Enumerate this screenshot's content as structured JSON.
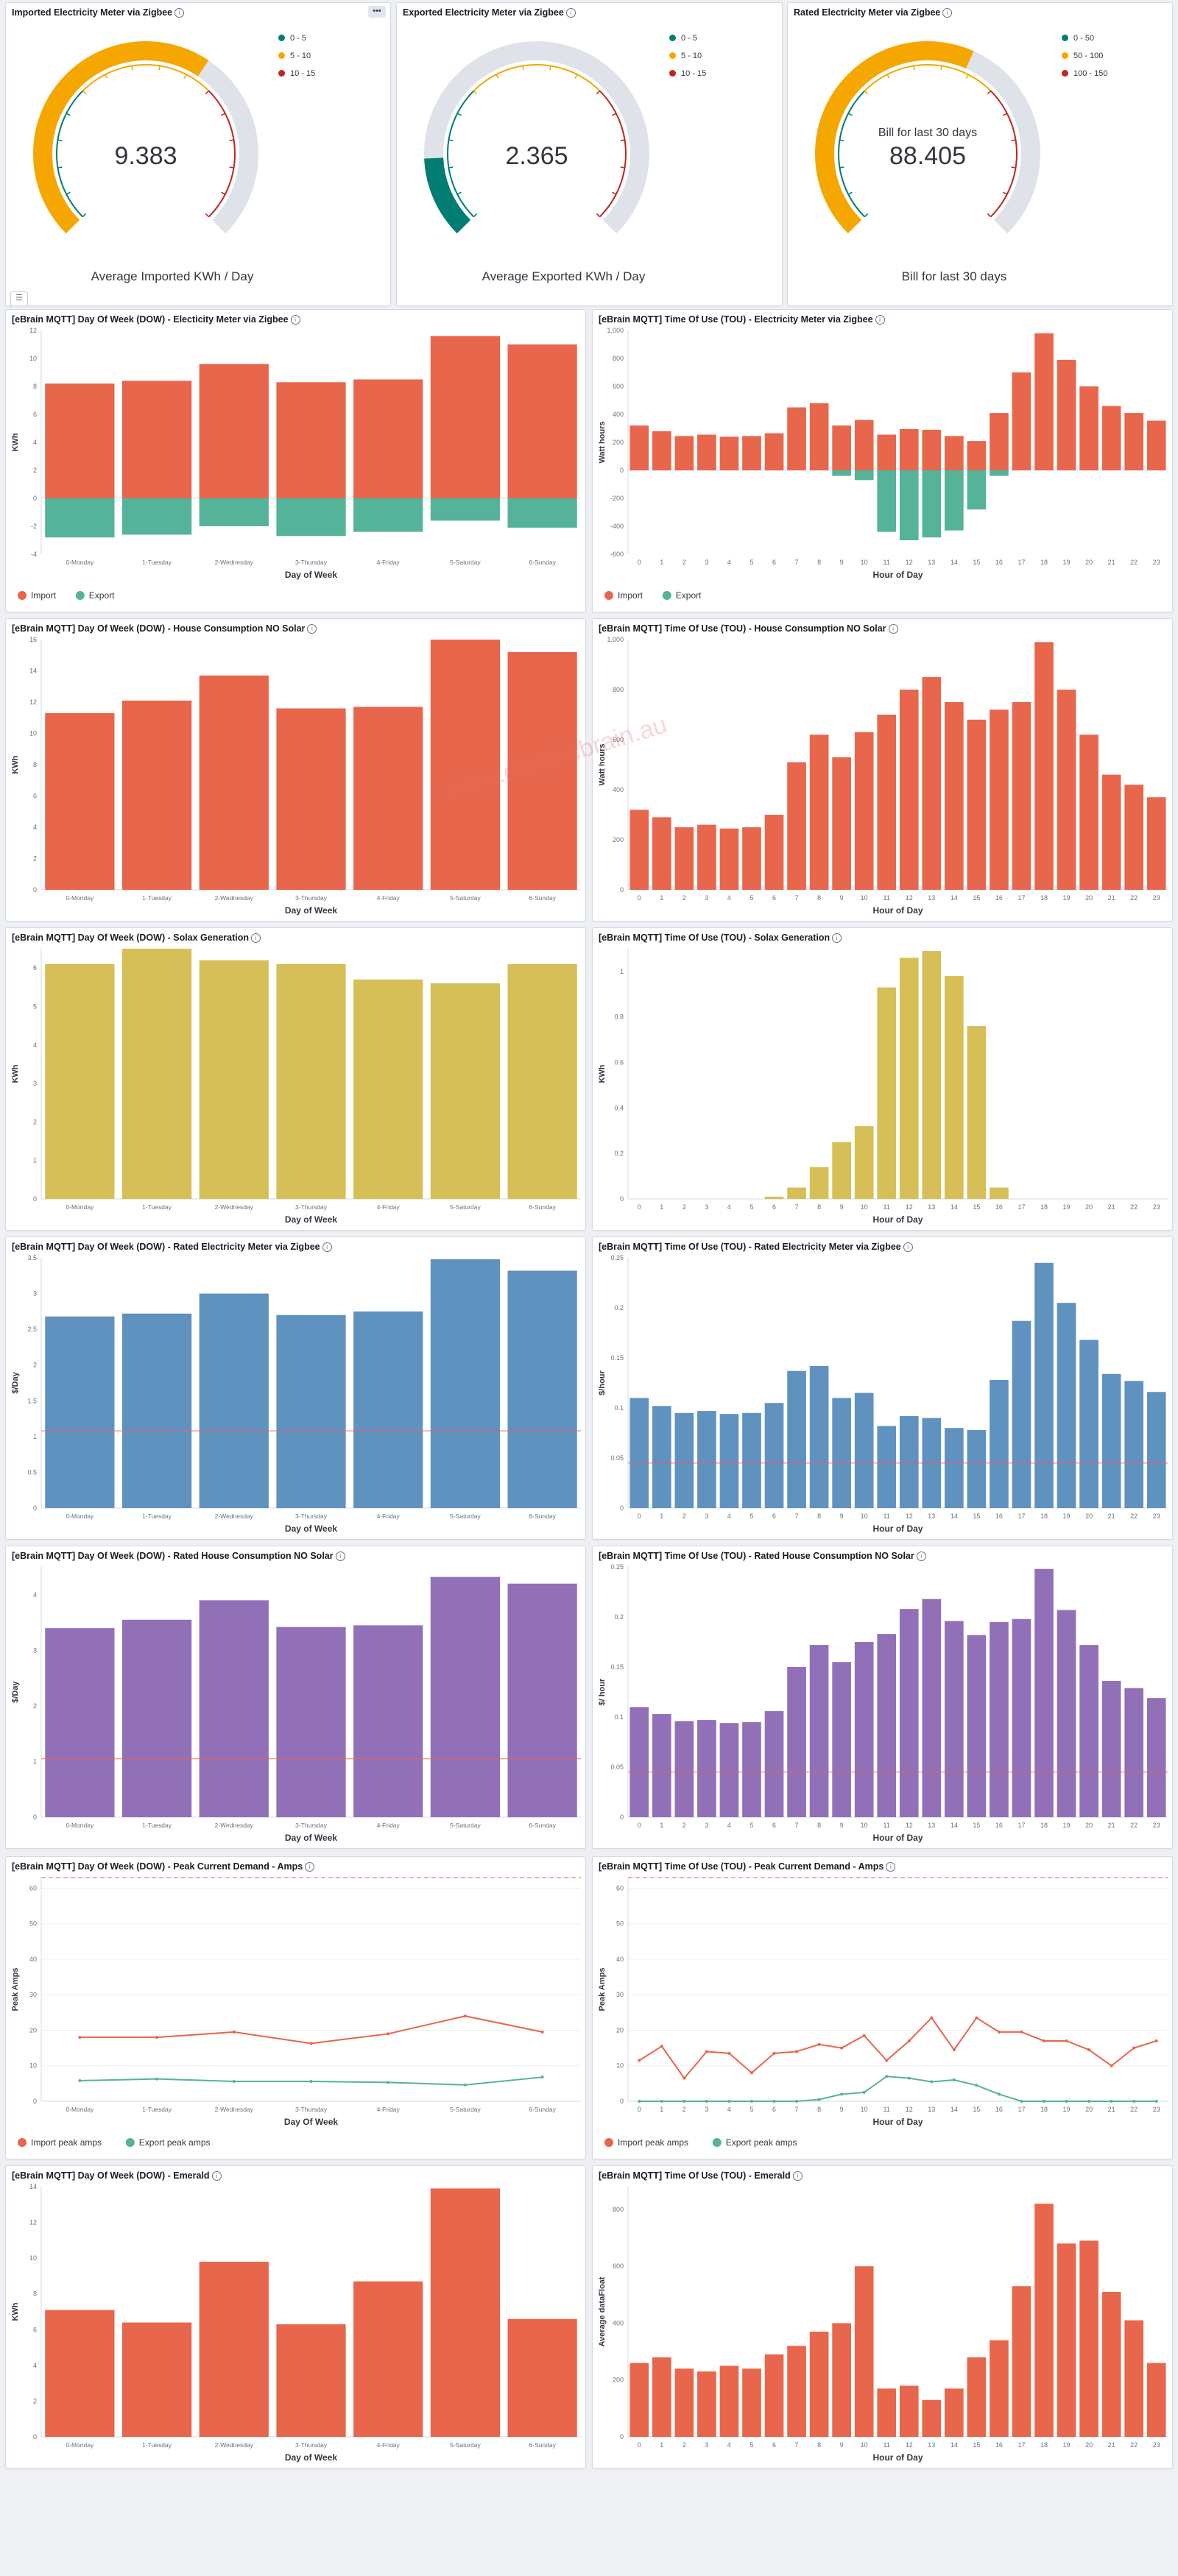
{
  "colors": {
    "import": "#e7664c",
    "export": "#54b399",
    "solar": "#d6bf57",
    "rated": "#6092c0",
    "house_rated": "#9170b8",
    "gauge_green": "#017d73",
    "gauge_orange": "#f5a700",
    "gauge_red": "#bd271e",
    "gauge_track": "#dfe2e8",
    "threshold": "#e7664c"
  },
  "toolbar": {
    "panel_menu_label": "•••",
    "toggle_label": "☰"
  },
  "watermark": {
    "text": "www.electricbrain.au"
  },
  "gauges": [
    {
      "title": "Imported Electricity Meter via Zigbee",
      "value": 9.383,
      "display_value": "9.383",
      "max": 15,
      "caption": "Average Imported KWh / Day",
      "inner_label": "",
      "bands": [
        {
          "label": "0 - 5",
          "color": "#017d73"
        },
        {
          "label": "5 - 10",
          "color": "#f5a700"
        },
        {
          "label": "10 - 15",
          "color": "#bd271e"
        }
      ]
    },
    {
      "title": "Exported Electricity Meter via Zigbee",
      "value": 2.365,
      "display_value": "2.365",
      "max": 15,
      "caption": "Average Exported KWh / Day",
      "inner_label": "",
      "bands": [
        {
          "label": "0 - 5",
          "color": "#017d73"
        },
        {
          "label": "5 - 10",
          "color": "#f5a700"
        },
        {
          "label": "10 - 15",
          "color": "#bd271e"
        }
      ]
    },
    {
      "title": "Rated Electricity Meter via Zigbee",
      "value": 88.405,
      "display_value": "88.405",
      "max": 150,
      "caption": "Bill for last 30 days",
      "inner_label": "Bill for last 30 days",
      "bands": [
        {
          "label": "0 - 50",
          "color": "#017d73"
        },
        {
          "label": "50 - 100",
          "color": "#f5a700"
        },
        {
          "label": "100 - 150",
          "color": "#bd271e"
        }
      ]
    }
  ],
  "chart_data": [
    {
      "title": "[eBrain MQTT] Day Of Week (DOW) - Electicity Meter via Zigbee",
      "type": "bar",
      "categories": [
        "0-Monday",
        "1-Tuesday",
        "2-Wednesday",
        "3-Thursday",
        "4-Friday",
        "5-Saturday",
        "6-Sunday"
      ],
      "series": [
        {
          "name": "Import",
          "color": "#e7664c",
          "values": [
            8.2,
            8.4,
            9.6,
            8.3,
            8.5,
            11.6,
            11.0
          ]
        },
        {
          "name": "Export",
          "color": "#54b399",
          "values": [
            -2.8,
            -2.6,
            -2.0,
            -2.7,
            -2.4,
            -1.6,
            -2.1
          ]
        }
      ],
      "xlabel": "Day of Week",
      "ylabel": "KWh",
      "ylim": [
        -4,
        12
      ],
      "yticks": [
        -4,
        -2,
        0,
        2,
        4,
        6,
        8,
        10,
        12
      ],
      "ytick_labels": [
        "-4",
        "-2",
        "0",
        "2",
        "4",
        "6",
        "8",
        "10",
        "12"
      ],
      "legend": "bottom-left",
      "grid": false
    },
    {
      "title": "[eBrain MQTT] Time Of Use (TOU) - Electricity Meter via Zigbee",
      "type": "bar",
      "categories": [
        "0",
        "1",
        "2",
        "3",
        "4",
        "5",
        "6",
        "7",
        "8",
        "9",
        "10",
        "11",
        "12",
        "13",
        "14",
        "15",
        "16",
        "17",
        "18",
        "19",
        "20",
        "21",
        "22",
        "23"
      ],
      "series": [
        {
          "name": "Import",
          "color": "#e7664c",
          "values": [
            320,
            280,
            245,
            255,
            240,
            245,
            265,
            450,
            480,
            320,
            360,
            255,
            295,
            290,
            245,
            210,
            410,
            700,
            980,
            790,
            600,
            460,
            410,
            355
          ]
        },
        {
          "name": "Export",
          "color": "#54b399",
          "values": [
            0,
            0,
            0,
            0,
            0,
            0,
            0,
            0,
            0,
            -40,
            -70,
            -440,
            -500,
            -480,
            -430,
            -280,
            -40,
            0,
            0,
            0,
            0,
            0,
            0,
            0
          ]
        }
      ],
      "xlabel": "Hour of Day",
      "ylabel": "Watt hours",
      "ylim": [
        -600,
        1000
      ],
      "yticks": [
        -600,
        -400,
        -200,
        0,
        200,
        400,
        600,
        800,
        1000
      ],
      "ytick_labels": [
        "-600",
        "-400",
        "-200",
        "0",
        "200",
        "400",
        "600",
        "800",
        "1,000"
      ],
      "legend": "bottom-left",
      "grid": false
    },
    {
      "title": "[eBrain MQTT] Day Of Week (DOW) - House Consumption NO Solar",
      "type": "bar",
      "categories": [
        "0-Monday",
        "1-Tuesday",
        "2-Wednesday",
        "3-Thursday",
        "4-Friday",
        "5-Saturday",
        "6-Sunday"
      ],
      "series": [
        {
          "name": "",
          "color": "#e7664c",
          "values": [
            11.3,
            12.1,
            13.7,
            11.6,
            11.7,
            16.0,
            15.2
          ]
        }
      ],
      "xlabel": "Day of Week",
      "ylabel": "KWh",
      "ylim": [
        0,
        16
      ],
      "yticks": [
        0,
        2,
        4,
        6,
        8,
        10,
        12,
        14,
        16
      ],
      "ytick_labels": [
        "0",
        "2",
        "4",
        "6",
        "8",
        "10",
        "12",
        "14",
        "16"
      ],
      "legend": "none",
      "grid": false
    },
    {
      "title": "[eBrain MQTT] Time Of Use (TOU) - House Consumption NO Solar",
      "type": "bar",
      "categories": [
        "0",
        "1",
        "2",
        "3",
        "4",
        "5",
        "6",
        "7",
        "8",
        "9",
        "10",
        "11",
        "12",
        "13",
        "14",
        "15",
        "16",
        "17",
        "18",
        "19",
        "20",
        "21",
        "22",
        "23"
      ],
      "series": [
        {
          "name": "",
          "color": "#e7664c",
          "values": [
            320,
            290,
            250,
            260,
            245,
            250,
            300,
            510,
            620,
            530,
            630,
            700,
            800,
            850,
            750,
            680,
            720,
            750,
            990,
            800,
            620,
            460,
            420,
            370
          ]
        }
      ],
      "xlabel": "Hour of Day",
      "ylabel": "Watt hours",
      "ylim": [
        0,
        1000
      ],
      "yticks": [
        0,
        200,
        400,
        600,
        800,
        1000
      ],
      "ytick_labels": [
        "0",
        "200",
        "400",
        "600",
        "800",
        "1,000"
      ],
      "legend": "none",
      "grid": false
    },
    {
      "title": "[eBrain MQTT] Day Of Week (DOW) - Solax Generation",
      "type": "bar",
      "categories": [
        "0-Monday",
        "1-Tuesday",
        "2-Wednesday",
        "3-Thursday",
        "4-Friday",
        "5-Saturday",
        "6-Sunday"
      ],
      "series": [
        {
          "name": "",
          "color": "#d6bf57",
          "values": [
            6.1,
            6.5,
            6.2,
            6.1,
            5.7,
            5.6,
            6.1
          ]
        }
      ],
      "xlabel": "Day of Week",
      "ylabel": "KWh",
      "ylim": [
        0,
        6.5
      ],
      "yticks": [
        0,
        1,
        2,
        3,
        4,
        5,
        6
      ],
      "ytick_labels": [
        "0",
        "1",
        "2",
        "3",
        "4",
        "5",
        "6"
      ],
      "legend": "none",
      "grid": false
    },
    {
      "title": "[eBrain MQTT] Time Of Use (TOU) - Solax Generation",
      "type": "bar",
      "categories": [
        "0",
        "1",
        "2",
        "3",
        "4",
        "5",
        "6",
        "7",
        "8",
        "9",
        "10",
        "11",
        "12",
        "13",
        "14",
        "15",
        "16",
        "17",
        "18",
        "19",
        "20",
        "21",
        "22",
        "23"
      ],
      "series": [
        {
          "name": "",
          "color": "#d6bf57",
          "values": [
            0,
            0,
            0,
            0,
            0,
            0,
            0.01,
            0.05,
            0.14,
            0.25,
            0.32,
            0.93,
            1.06,
            1.09,
            0.98,
            0.76,
            0.05,
            0,
            0,
            0,
            0,
            0,
            0,
            0
          ]
        }
      ],
      "xlabel": "Hour of Day",
      "ylabel": "KWh",
      "ylim": [
        0,
        1.1
      ],
      "yticks": [
        0,
        0.2,
        0.4,
        0.6,
        0.8,
        1
      ],
      "ytick_labels": [
        "0",
        "0.2",
        "0.4",
        "0.6",
        "0.8",
        "1"
      ],
      "legend": "none",
      "grid": false
    },
    {
      "title": "[eBrain MQTT] Day Of Week (DOW) - Rated Electricity Meter via Zigbee",
      "type": "bar",
      "categories": [
        "0-Monday",
        "1-Tuesday",
        "2-Wednesday",
        "3-Thursday",
        "4-Friday",
        "5-Saturday",
        "6-Sunday"
      ],
      "series": [
        {
          "name": "",
          "color": "#6092c0",
          "values": [
            2.68,
            2.72,
            3.0,
            2.7,
            2.75,
            3.48,
            3.32
          ]
        }
      ],
      "xlabel": "Day of Week",
      "ylabel": "$/Day",
      "ylim": [
        0,
        3.5
      ],
      "yticks": [
        0,
        0.5,
        1,
        1.5,
        2,
        2.5,
        3,
        3.5
      ],
      "ytick_labels": [
        "0",
        "0.5",
        "1",
        "1.5",
        "2",
        "2.5",
        "3",
        "3.5"
      ],
      "threshold": 1.08,
      "legend": "none",
      "grid": false
    },
    {
      "title": "[eBrain MQTT] Time Of Use (TOU) - Rated Electricity Meter via Zigbee",
      "type": "bar",
      "categories": [
        "0",
        "1",
        "2",
        "3",
        "4",
        "5",
        "6",
        "7",
        "8",
        "9",
        "10",
        "11",
        "12",
        "13",
        "14",
        "15",
        "16",
        "17",
        "18",
        "19",
        "20",
        "21",
        "22",
        "23"
      ],
      "series": [
        {
          "name": "",
          "color": "#6092c0",
          "values": [
            0.11,
            0.102,
            0.095,
            0.097,
            0.094,
            0.095,
            0.105,
            0.137,
            0.142,
            0.11,
            0.115,
            0.082,
            0.092,
            0.09,
            0.08,
            0.078,
            0.128,
            0.187,
            0.245,
            0.205,
            0.168,
            0.134,
            0.127,
            0.116
          ]
        }
      ],
      "xlabel": "Hour of Day",
      "ylabel": "$/hour",
      "ylim": [
        0,
        0.25
      ],
      "yticks": [
        0,
        0.05,
        0.1,
        0.15,
        0.2,
        0.25
      ],
      "ytick_labels": [
        "0",
        "0.05",
        "0.1",
        "0.15",
        "0.2",
        "0.25"
      ],
      "threshold": 0.045,
      "legend": "none",
      "grid": false
    },
    {
      "title": "[eBrain MQTT] Day Of Week (DOW) - Rated House Consumption NO Solar",
      "type": "bar",
      "categories": [
        "0-Monday",
        "1-Tuesday",
        "2-Wednesday",
        "3-Thursday",
        "4-Friday",
        "5-Saturday",
        "6-Sunday"
      ],
      "series": [
        {
          "name": "",
          "color": "#9170b8",
          "values": [
            3.4,
            3.55,
            3.9,
            3.42,
            3.45,
            4.32,
            4.2
          ]
        }
      ],
      "xlabel": "Day of Week",
      "ylabel": "$/Day",
      "ylim": [
        0,
        4.5
      ],
      "yticks": [
        0,
        1,
        2,
        3,
        4
      ],
      "ytick_labels": [
        "0",
        "1",
        "2",
        "3",
        "4"
      ],
      "threshold": 1.05,
      "legend": "none",
      "grid": false
    },
    {
      "title": "[eBrain MQTT] Time Of Use (TOU) - Rated House Consumption NO Solar",
      "type": "bar",
      "categories": [
        "0",
        "1",
        "2",
        "3",
        "4",
        "5",
        "6",
        "7",
        "8",
        "9",
        "10",
        "11",
        "12",
        "13",
        "14",
        "15",
        "16",
        "17",
        "18",
        "19",
        "20",
        "21",
        "22",
        "23"
      ],
      "series": [
        {
          "name": "",
          "color": "#9170b8",
          "values": [
            0.11,
            0.103,
            0.096,
            0.097,
            0.094,
            0.095,
            0.106,
            0.15,
            0.172,
            0.155,
            0.175,
            0.183,
            0.208,
            0.218,
            0.196,
            0.182,
            0.195,
            0.198,
            0.248,
            0.207,
            0.172,
            0.136,
            0.129,
            0.119
          ]
        }
      ],
      "xlabel": "Hour of Day",
      "ylabel": "$/ hour",
      "ylim": [
        0,
        0.25
      ],
      "yticks": [
        0,
        0.05,
        0.1,
        0.15,
        0.2,
        0.25
      ],
      "ytick_labels": [
        "0",
        "0.05",
        "0.1",
        "0.15",
        "0.2",
        "0.25"
      ],
      "threshold": 0.045,
      "legend": "none",
      "grid": false
    },
    {
      "title": "[eBrain MQTT] Day Of Week (DOW) - Peak Current Demand - Amps",
      "type": "line",
      "categories": [
        "0-Monday",
        "1-Tuesday",
        "2-Wednesday",
        "3-Thursday",
        "4-Friday",
        "5-Saturday",
        "6-Sunday"
      ],
      "series": [
        {
          "name": "Import peak amps",
          "color": "#e7664c",
          "values": [
            18,
            18,
            19.5,
            16.3,
            19,
            24,
            19.5
          ]
        },
        {
          "name": "Export peak amps",
          "color": "#54b399",
          "values": [
            5.8,
            6.3,
            5.6,
            5.6,
            5.3,
            4.6,
            6.8
          ]
        }
      ],
      "xlabel": "Day Of Week",
      "ylabel": "Peak Amps",
      "ylim": [
        0,
        63
      ],
      "yticks": [
        0,
        10,
        20,
        30,
        40,
        50,
        60
      ],
      "ytick_labels": [
        "0",
        "10",
        "20",
        "30",
        "40",
        "50",
        "60"
      ],
      "threshold": 63,
      "legend": "bottom-left",
      "grid": true
    },
    {
      "title": "[eBrain MQTT] Time Of Use (TOU) - Peak Current Demand - Amps",
      "type": "line",
      "categories": [
        "0",
        "1",
        "2",
        "3",
        "4",
        "5",
        "6",
        "7",
        "8",
        "9",
        "10",
        "11",
        "12",
        "13",
        "14",
        "15",
        "16",
        "17",
        "18",
        "19",
        "20",
        "21",
        "22",
        "23"
      ],
      "series": [
        {
          "name": "Import peak amps",
          "color": "#e7664c",
          "values": [
            11.5,
            15.5,
            6.5,
            14,
            13.5,
            8,
            13.5,
            14,
            16,
            15,
            18.5,
            11.5,
            17,
            23.5,
            14.5,
            23.5,
            19.5,
            19.5,
            17,
            17,
            14.5,
            10,
            15,
            17
          ]
        },
        {
          "name": "Export peak amps",
          "color": "#54b399",
          "values": [
            0,
            0,
            0,
            0,
            0,
            0,
            0,
            0,
            0.5,
            2,
            2.5,
            7,
            6.5,
            5.5,
            6,
            4.5,
            2,
            0,
            0,
            0,
            0,
            0,
            0,
            0
          ]
        }
      ],
      "xlabel": "Hour of Day",
      "ylabel": "Peak Amps",
      "ylim": [
        0,
        63
      ],
      "yticks": [
        0,
        10,
        20,
        30,
        40,
        50,
        60
      ],
      "ytick_labels": [
        "0",
        "10",
        "20",
        "30",
        "40",
        "50",
        "60"
      ],
      "threshold": 63,
      "legend": "bottom-left",
      "grid": true
    },
    {
      "title": "[eBrain MQTT] Day Of Week (DOW) - Emerald",
      "type": "bar",
      "categories": [
        "0-Monday",
        "1-Tuesday",
        "2-Wednesday",
        "3-Thursday",
        "4-Friday",
        "5-Saturday",
        "6-Sunday"
      ],
      "series": [
        {
          "name": "",
          "color": "#e7664c",
          "values": [
            7.1,
            6.4,
            9.8,
            6.3,
            8.7,
            13.9,
            6.6
          ]
        }
      ],
      "xlabel": "Day of Week",
      "ylabel": "KWh",
      "ylim": [
        0,
        14
      ],
      "yticks": [
        0,
        2,
        4,
        6,
        8,
        10,
        12,
        14
      ],
      "ytick_labels": [
        "0",
        "2",
        "4",
        "6",
        "8",
        "10",
        "12",
        "14"
      ],
      "legend": "none",
      "grid": false
    },
    {
      "title": "[eBrain MQTT] Time Of Use (TOU) - Emerald",
      "type": "bar",
      "categories": [
        "0",
        "1",
        "2",
        "3",
        "4",
        "5",
        "6",
        "7",
        "8",
        "9",
        "10",
        "11",
        "12",
        "13",
        "14",
        "15",
        "16",
        "17",
        "18",
        "19",
        "20",
        "21",
        "22",
        "23"
      ],
      "series": [
        {
          "name": "",
          "color": "#e7664c",
          "values": [
            260,
            280,
            240,
            230,
            250,
            240,
            290,
            320,
            370,
            400,
            600,
            170,
            180,
            130,
            170,
            280,
            340,
            530,
            820,
            680,
            690,
            510,
            410,
            260
          ]
        }
      ],
      "xlabel": "Hour of Day",
      "ylabel": "Average dataFloat",
      "ylim": [
        0,
        880
      ],
      "yticks": [
        0,
        200,
        400,
        600,
        800
      ],
      "ytick_labels": [
        "0",
        "200",
        "400",
        "600",
        "800"
      ],
      "legend": "none",
      "grid": false
    }
  ]
}
